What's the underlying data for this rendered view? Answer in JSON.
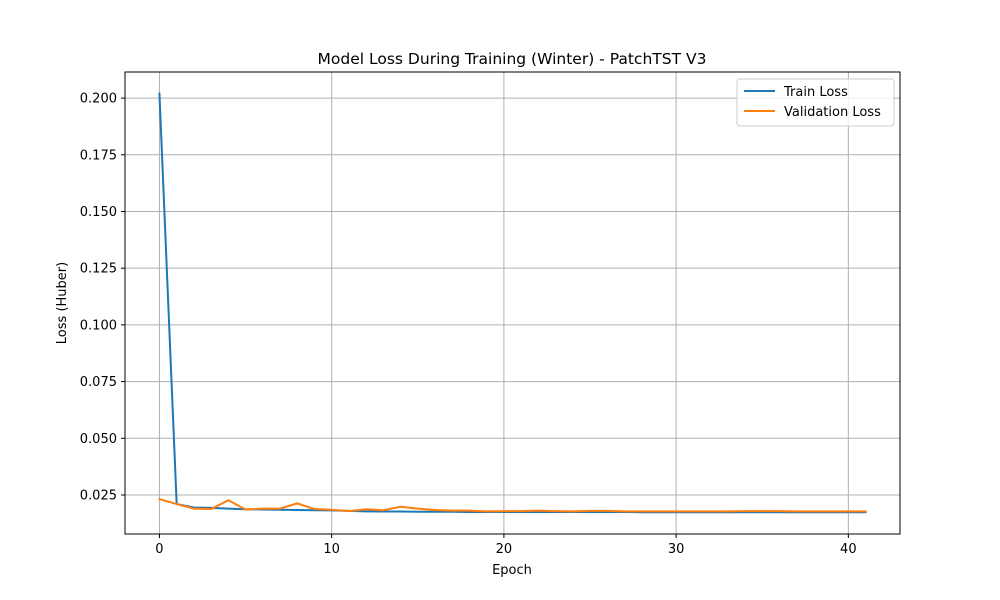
{
  "chart_data": {
    "type": "line",
    "title": "Model Loss During Training (Winter) - PatchTST V3",
    "xlabel": "Epoch",
    "ylabel": "Loss (Huber)",
    "xlim": [
      -2,
      43
    ],
    "ylim": [
      0.0078,
      0.2115
    ],
    "xticks": [
      0,
      10,
      20,
      30,
      40
    ],
    "xtick_labels": [
      "0",
      "10",
      "20",
      "30",
      "40"
    ],
    "yticks": [
      0.025,
      0.05,
      0.075,
      0.1,
      0.125,
      0.15,
      0.175,
      0.2
    ],
    "ytick_labels": [
      "0.025",
      "0.050",
      "0.075",
      "0.100",
      "0.125",
      "0.150",
      "0.175",
      "0.200"
    ],
    "grid": true,
    "legend": "top-right",
    "series": [
      {
        "name": "Train Loss",
        "color": "#1f77b4",
        "x": [
          0,
          1,
          2,
          3,
          4,
          5,
          6,
          7,
          8,
          9,
          10,
          11,
          12,
          13,
          14,
          15,
          16,
          17,
          18,
          19,
          20,
          21,
          22,
          23,
          24,
          25,
          26,
          27,
          28,
          29,
          30,
          31,
          32,
          33,
          34,
          35,
          36,
          37,
          38,
          39,
          40,
          41
        ],
        "values": [
          0.202,
          0.021,
          0.0195,
          0.0193,
          0.019,
          0.0187,
          0.0186,
          0.0185,
          0.0184,
          0.0183,
          0.0182,
          0.018,
          0.0178,
          0.0177,
          0.0177,
          0.0176,
          0.0176,
          0.0176,
          0.0175,
          0.0175,
          0.0175,
          0.0175,
          0.0175,
          0.0175,
          0.0175,
          0.0175,
          0.0175,
          0.0175,
          0.0174,
          0.0174,
          0.0174,
          0.0174,
          0.0174,
          0.0174,
          0.0174,
          0.0174,
          0.0174,
          0.0174,
          0.0174,
          0.0174,
          0.0174,
          0.0174
        ]
      },
      {
        "name": "Validation Loss",
        "color": "#ff7f0e",
        "x": [
          0,
          1,
          2,
          3,
          4,
          5,
          6,
          7,
          8,
          9,
          10,
          11,
          12,
          13,
          14,
          15,
          16,
          17,
          18,
          19,
          20,
          21,
          22,
          23,
          24,
          25,
          26,
          27,
          28,
          29,
          30,
          31,
          32,
          33,
          34,
          35,
          36,
          37,
          38,
          39,
          40,
          41
        ],
        "values": [
          0.0232,
          0.021,
          0.019,
          0.0188,
          0.0227,
          0.0186,
          0.019,
          0.019,
          0.0213,
          0.0188,
          0.0185,
          0.0179,
          0.0187,
          0.0183,
          0.0198,
          0.019,
          0.0184,
          0.0181,
          0.0181,
          0.0178,
          0.0179,
          0.0179,
          0.0181,
          0.0179,
          0.0178,
          0.018,
          0.018,
          0.0178,
          0.0178,
          0.0178,
          0.0178,
          0.0178,
          0.0178,
          0.0178,
          0.0179,
          0.0179,
          0.0179,
          0.0178,
          0.0178,
          0.0178,
          0.0178,
          0.0178
        ]
      }
    ]
  }
}
